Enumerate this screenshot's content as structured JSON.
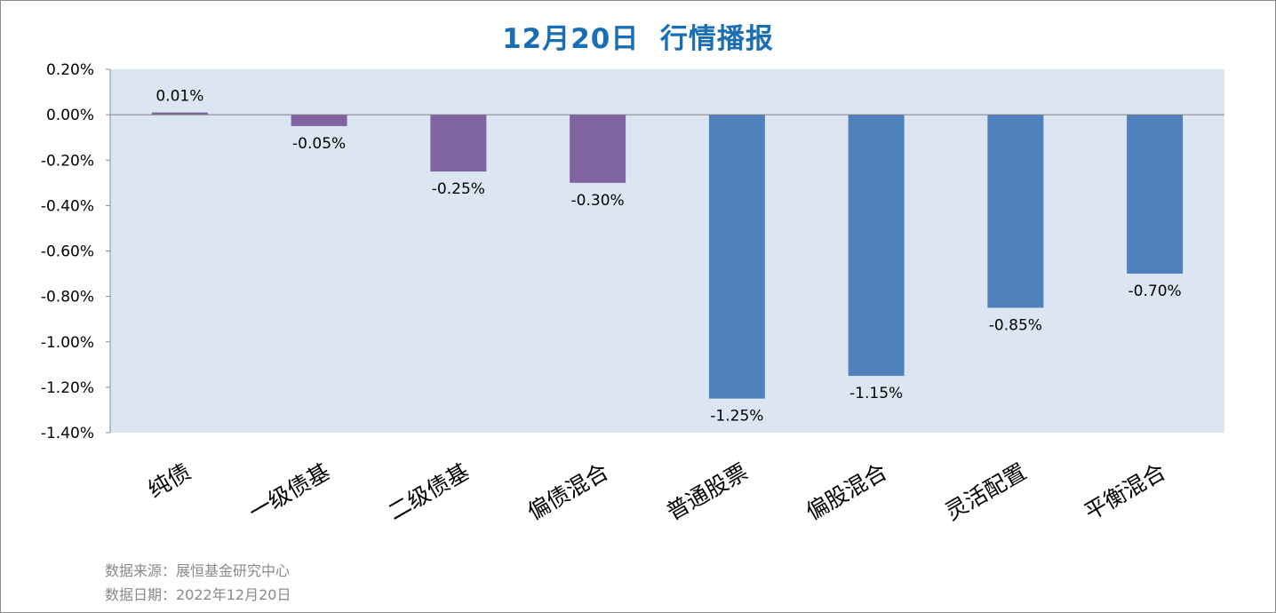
{
  "title": "12月20日  行情播报",
  "footer": {
    "source": "数据来源：展恒基金研究中心",
    "date": "数据日期：2022年12月20日"
  },
  "colors": {
    "bond": "#8064a2",
    "equity": "#4f81bd",
    "plot_bg": "#dce6f2",
    "title": "#1a6fb4"
  },
  "chart_data": {
    "type": "bar",
    "title": "12月20日  行情播报",
    "xlabel": "",
    "ylabel": "",
    "categories": [
      "纯债",
      "一级债基",
      "二级债基",
      "偏债混合",
      "普通股票",
      "偏股混合",
      "灵活配置",
      "平衡混合"
    ],
    "values": [
      0.01,
      -0.05,
      -0.25,
      -0.3,
      -1.25,
      -1.15,
      -0.85,
      -0.7
    ],
    "value_labels": [
      "0.01%",
      "-0.05%",
      "-0.25%",
      "-0.30%",
      "-1.25%",
      "-1.15%",
      "-0.85%",
      "-0.70%"
    ],
    "bar_groups": [
      "bond",
      "bond",
      "bond",
      "bond",
      "equity",
      "equity",
      "equity",
      "equity"
    ],
    "unit": "%",
    "ylim": [
      -1.4,
      0.2
    ],
    "yticks": [
      0.2,
      0.0,
      -0.2,
      -0.4,
      -0.6,
      -0.8,
      -1.0,
      -1.2,
      -1.4
    ],
    "ytick_labels": [
      "0.20%",
      "0.00%",
      "-0.20%",
      "-0.40%",
      "-0.60%",
      "-0.80%",
      "-1.00%",
      "-1.20%",
      "-1.40%"
    ],
    "grid": false,
    "legend": "none"
  }
}
